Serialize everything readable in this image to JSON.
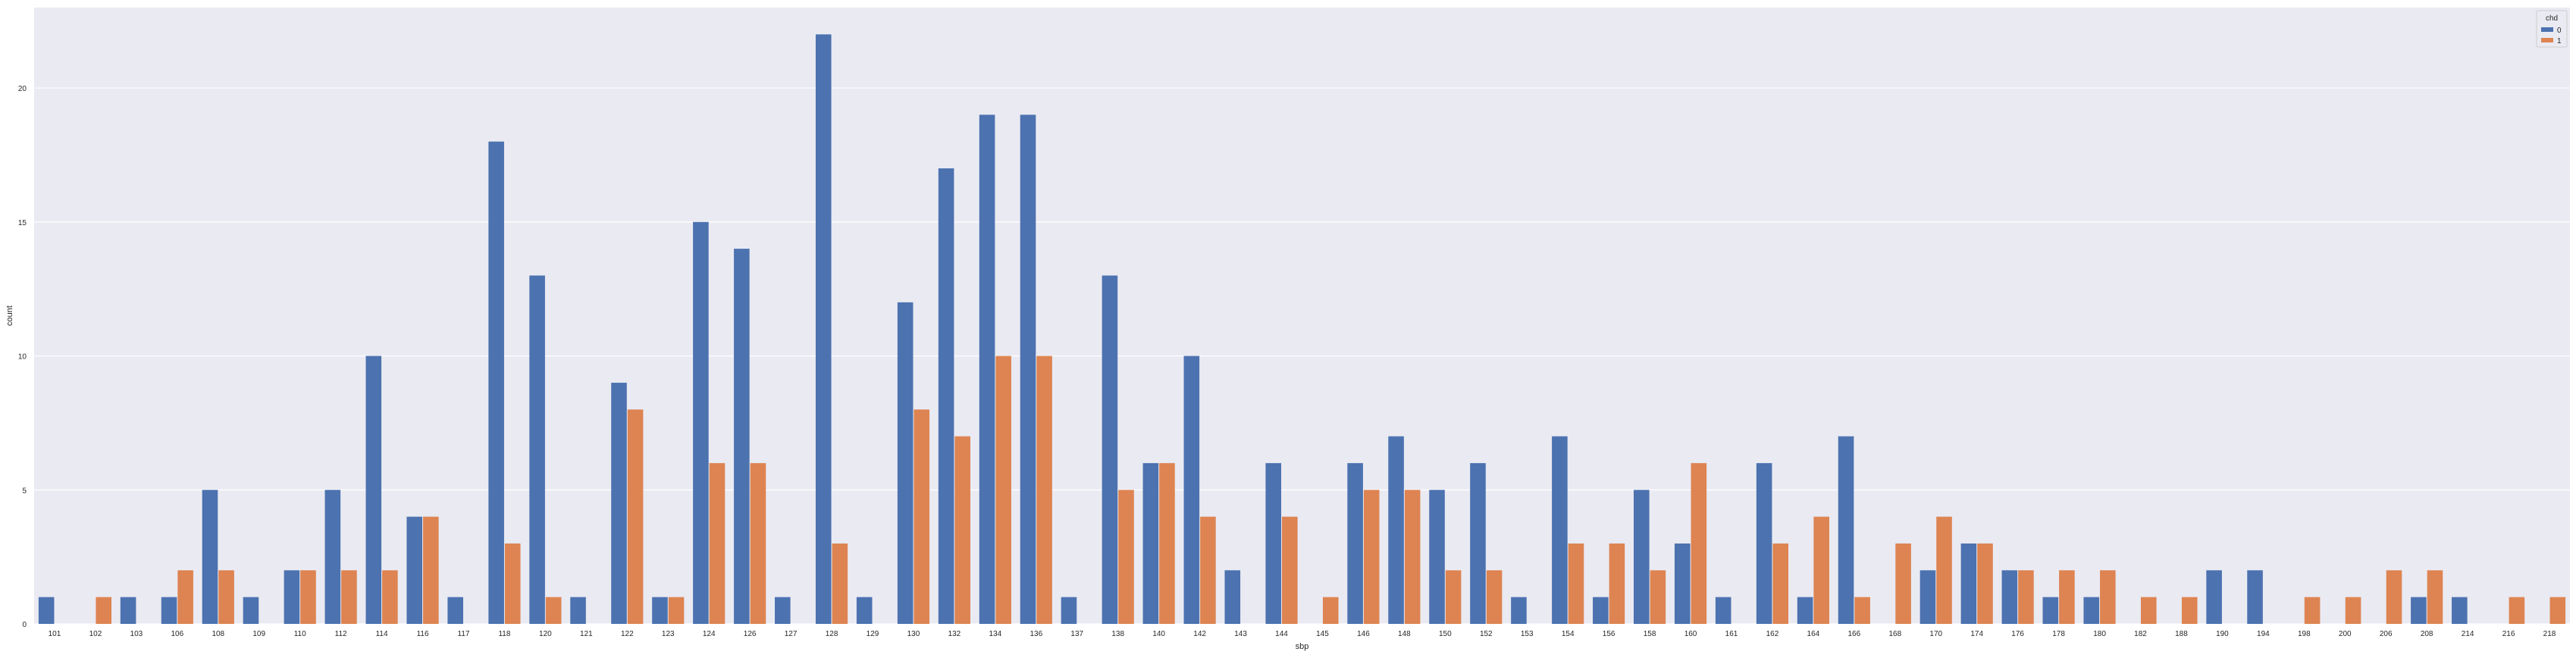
{
  "chart_data": {
    "type": "bar",
    "xlabel": "sbp",
    "ylabel": "count",
    "ylim": [
      0,
      23
    ],
    "yticks": [
      0,
      5,
      10,
      15,
      20
    ],
    "grid": true,
    "legend": {
      "title": "chd",
      "placement": "top-right",
      "entries": [
        "0",
        "1"
      ]
    },
    "categories": [
      "101",
      "102",
      "103",
      "106",
      "108",
      "109",
      "110",
      "112",
      "114",
      "116",
      "117",
      "118",
      "120",
      "121",
      "122",
      "123",
      "124",
      "126",
      "127",
      "128",
      "129",
      "130",
      "132",
      "134",
      "136",
      "137",
      "138",
      "140",
      "142",
      "143",
      "144",
      "145",
      "146",
      "148",
      "150",
      "152",
      "153",
      "154",
      "156",
      "158",
      "160",
      "161",
      "162",
      "164",
      "166",
      "168",
      "170",
      "174",
      "176",
      "178",
      "180",
      "182",
      "188",
      "190",
      "194",
      "198",
      "200",
      "206",
      "208",
      "214",
      "216",
      "218"
    ],
    "series": [
      {
        "name": "0",
        "color": "#4c72b0",
        "values": [
          1,
          0,
          1,
          1,
          5,
          1,
          2,
          5,
          10,
          4,
          1,
          18,
          13,
          1,
          9,
          1,
          15,
          14,
          1,
          22,
          1,
          12,
          17,
          19,
          19,
          1,
          13,
          6,
          10,
          2,
          6,
          0,
          6,
          7,
          5,
          6,
          1,
          7,
          1,
          5,
          3,
          1,
          6,
          1,
          7,
          0,
          2,
          3,
          2,
          1,
          1,
          0,
          0,
          2,
          2,
          0,
          0,
          0,
          1,
          1,
          0,
          0
        ]
      },
      {
        "name": "1",
        "color": "#dd8452",
        "values": [
          0,
          1,
          0,
          2,
          2,
          0,
          2,
          2,
          2,
          4,
          0,
          3,
          1,
          0,
          8,
          1,
          6,
          6,
          0,
          3,
          0,
          8,
          7,
          10,
          10,
          0,
          5,
          6,
          4,
          0,
          4,
          1,
          5,
          5,
          2,
          2,
          0,
          3,
          3,
          2,
          6,
          0,
          3,
          4,
          1,
          3,
          4,
          3,
          2,
          2,
          2,
          1,
          1,
          0,
          0,
          1,
          1,
          2,
          2,
          0,
          1,
          1
        ]
      }
    ]
  }
}
